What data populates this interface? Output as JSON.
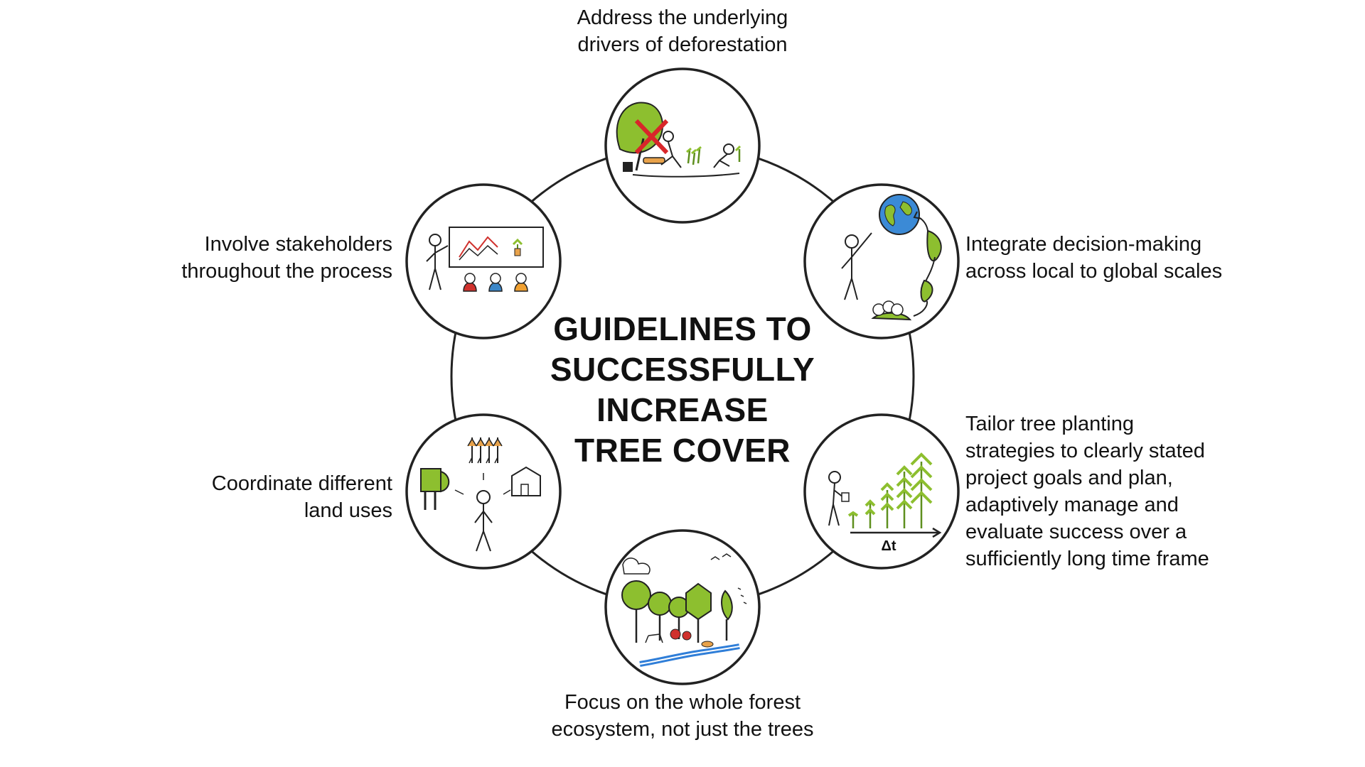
{
  "title": {
    "lines": [
      "GUIDELINES TO",
      "SUCCESSFULLY",
      "INCREASE",
      "TREE COVER"
    ]
  },
  "guidelines": [
    {
      "id": "drivers",
      "icon": "deforestation-icon",
      "lines": [
        "Address the underlying",
        "drivers of deforestation"
      ]
    },
    {
      "id": "scales",
      "icon": "globe-cycle-icon",
      "lines": [
        "Integrate decision-making",
        "across local to global scales"
      ]
    },
    {
      "id": "planting",
      "icon": "tree-growth-icon",
      "lines": [
        "Tailor tree planting",
        "strategies to clearly stated",
        "project goals and plan,",
        "adaptively manage and",
        "evaluate success over a",
        "sufficiently long time frame"
      ]
    },
    {
      "id": "ecosystem",
      "icon": "forest-ecosystem-icon",
      "lines": [
        "Focus on the whole forest",
        "ecosystem, not just the trees"
      ]
    },
    {
      "id": "landuse",
      "icon": "land-use-icon",
      "lines": [
        "Coordinate different",
        "land uses"
      ]
    },
    {
      "id": "stakeholders",
      "icon": "stakeholders-icon",
      "lines": [
        "Involve stakeholders",
        "throughout the process"
      ]
    }
  ],
  "growth_symbol": "Δt",
  "colors": {
    "tree_green": "#8dbf2f",
    "dark_green": "#5e8f1e",
    "outline": "#222222",
    "cross_red": "#d8262a",
    "water_blue": "#2f7ed8",
    "globe_blue": "#3b8ad6",
    "person_red": "#d0312d",
    "person_blue": "#3a86c8",
    "person_orange": "#f0a030",
    "crop_orange": "#e8a24a"
  }
}
